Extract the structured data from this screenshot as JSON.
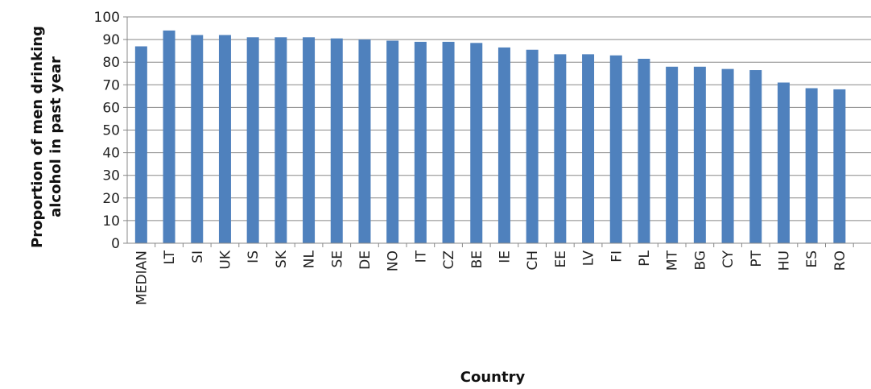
{
  "chart_data": {
    "type": "bar",
    "title": "",
    "xlabel": "Country",
    "ylabel_lines": [
      "Proportion of men drinking",
      "alcohol in past year"
    ],
    "ylim": [
      0,
      100
    ],
    "ytick_step": 10,
    "grid": true,
    "bar_color": "#4f81bd",
    "categories": [
      "MEDIAN",
      "LT",
      "SI",
      "UK",
      "IS",
      "SK",
      "NL",
      "SE",
      "DE",
      "NO",
      "IT",
      "CZ",
      "BE",
      "IE",
      "CH",
      "EE",
      "LV",
      "FI",
      "PL",
      "MT",
      "BG",
      "CY",
      "PT",
      "HU",
      "ES",
      "RO"
    ],
    "values": [
      87,
      94,
      92,
      92,
      91,
      91,
      91,
      90.5,
      90,
      89.5,
      89,
      89,
      88.5,
      86.5,
      85.5,
      83.5,
      83.5,
      83,
      81.5,
      78,
      78,
      77,
      76.5,
      71,
      68.5,
      68
    ]
  }
}
